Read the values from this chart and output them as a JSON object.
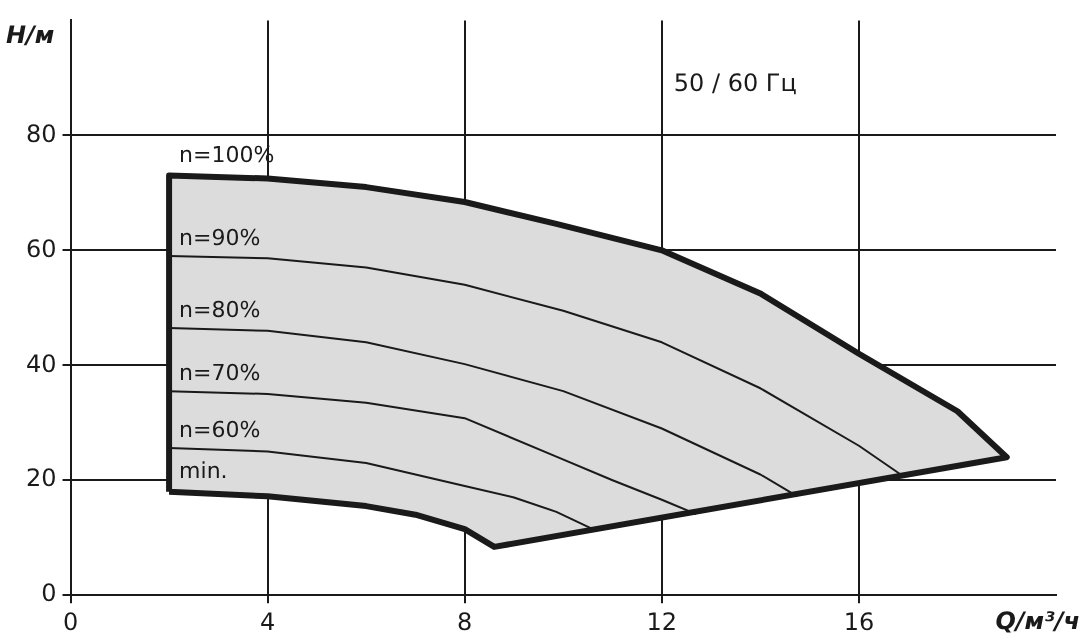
{
  "chart_data": {
    "type": "line",
    "subtitle": "50 / 60 Гц",
    "xlabel": "Q/м³/ч",
    "ylabel": "H/м",
    "xlim": [
      0,
      20
    ],
    "xticks": [
      0,
      4,
      8,
      12,
      16
    ],
    "ylim": [
      0,
      100
    ],
    "yticks": [
      0,
      20,
      40,
      60,
      80
    ],
    "grid": true,
    "legend": false,
    "marker": "none",
    "annotations": [
      {
        "text": "n=100%",
        "x": 2,
        "y": 73
      },
      {
        "text": "min.",
        "x": 2,
        "y": 18
      }
    ],
    "series": [
      {
        "type": "area",
        "color": "#dcdcdc",
        "x": [
          2,
          2,
          4,
          6,
          8,
          9.86,
          12,
          14,
          16,
          18,
          19,
          8.6,
          8,
          7,
          6,
          4,
          2
        ],
        "values": [
          18,
          73,
          72.5,
          71,
          68.4,
          64.6,
          60,
          52.5,
          42,
          32,
          24,
          8.4,
          11.5,
          14,
          15.5,
          17.2,
          18
        ]
      },
      {
        "name": "n=90%",
        "color": "#1a1a1a",
        "x": [
          2,
          4,
          6,
          8,
          10,
          12,
          14,
          16,
          16.9
        ],
        "values": [
          59,
          58.6,
          57,
          54,
          49.5,
          44,
          36,
          26,
          20.7
        ]
      },
      {
        "name": "n=80%",
        "color": "#1a1a1a",
        "x": [
          2,
          4,
          6,
          8,
          10,
          12,
          14,
          14.75
        ],
        "values": [
          46.5,
          46,
          44,
          40.2,
          35.5,
          29,
          21,
          17.2
        ]
      },
      {
        "name": "n=70%",
        "color": "#1a1a1a",
        "x": [
          2,
          4,
          6,
          8,
          9.86,
          11,
          12,
          12.7
        ],
        "values": [
          35.5,
          35,
          33.5,
          30.8,
          24.1,
          20,
          16.6,
          14.1
        ]
      },
      {
        "name": "n=60%",
        "color": "#1a1a1a",
        "x": [
          2,
          4,
          6,
          8,
          9,
          9.86,
          10.6
        ],
        "values": [
          25.6,
          25,
          23,
          19,
          17,
          14.5,
          11.5
        ]
      }
    ]
  }
}
